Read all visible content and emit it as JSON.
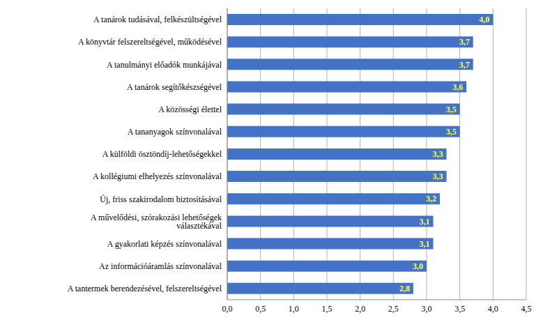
{
  "chart_data": {
    "type": "bar",
    "orientation": "horizontal",
    "categories": [
      "A tanárok tudásával, felkészültségével",
      "A könyvtár felszereltségével, működésével",
      "A tanulmányi előadók munkájával",
      "A tanárok segítőkészségével",
      "A közösségi élettel",
      "A tananyagok színvonalával",
      "A külföldi ösztöndíj-lehetőségekkel",
      "A kollégiumi elhelyezés színvonalával",
      "Új, friss szakirodalom biztosításával",
      "A művelődési, szórakozási lehetőségek választékával",
      "A gyakorlati képzés színvonalával",
      "Az információáramlás színvonalával",
      "A tantermek berendezésével, felszereltségével"
    ],
    "values": [
      4.0,
      3.7,
      3.7,
      3.6,
      3.5,
      3.5,
      3.3,
      3.3,
      3.2,
      3.1,
      3.1,
      3.0,
      2.8
    ],
    "value_labels": [
      "4,0",
      "3,7",
      "3,7",
      "3,6",
      "3,5",
      "3,5",
      "3,3",
      "3,3",
      "3,2",
      "3,1",
      "3,1",
      "3,0",
      "2,8"
    ],
    "data_labels": true,
    "color": "#4472c4",
    "xlim": [
      0,
      4.5
    ],
    "xticks": [
      {
        "value": 0,
        "label": "0,0"
      },
      {
        "value": 0.5,
        "label": "0,5"
      },
      {
        "value": 1,
        "label": "1,0"
      },
      {
        "value": 1.5,
        "label": "1,5"
      },
      {
        "value": 2,
        "label": "2,0"
      },
      {
        "value": 2.5,
        "label": "2,5"
      },
      {
        "value": 3,
        "label": "3,0"
      },
      {
        "value": 3.5,
        "label": "3,5"
      },
      {
        "value": 4,
        "label": "4,0"
      },
      {
        "value": 4.5,
        "label": "4,5"
      }
    ],
    "grid": true
  }
}
